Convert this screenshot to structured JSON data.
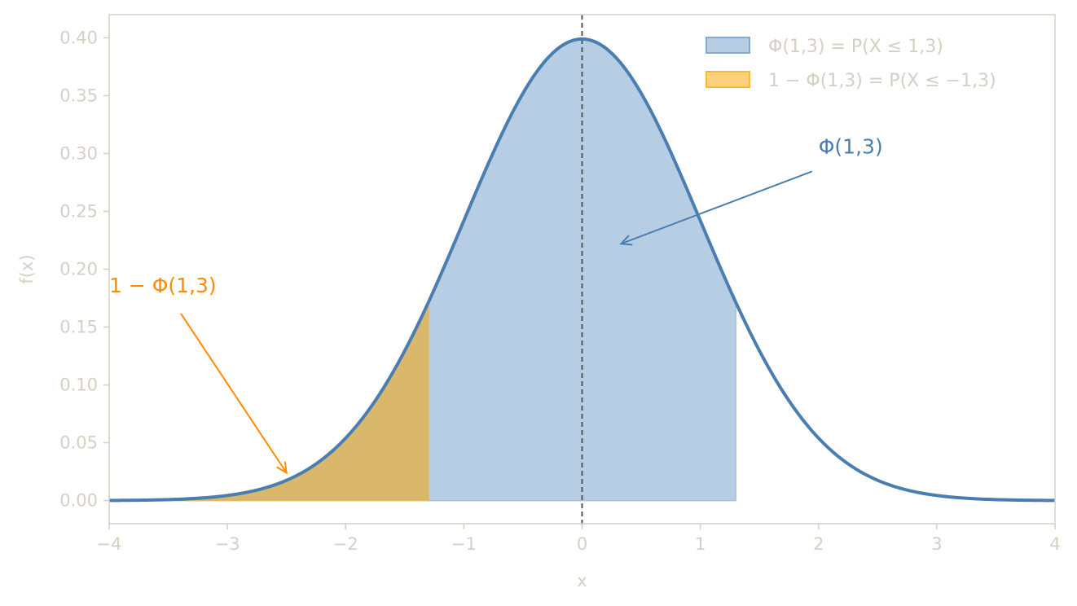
{
  "chart_data": {
    "type": "area",
    "title": "",
    "xlabel": "x",
    "ylabel": "f(x)",
    "xlim": [
      -4,
      4
    ],
    "ylim": [
      -0.02,
      0.42
    ],
    "xticks": [
      -4,
      -3,
      -2,
      -1,
      0,
      1,
      2,
      3,
      4
    ],
    "xtick_labels": [
      "−4",
      "−3",
      "−2",
      "−1",
      "0",
      "1",
      "2",
      "3",
      "4"
    ],
    "yticks": [
      0.0,
      0.05,
      0.1,
      0.15,
      0.2,
      0.25,
      0.3,
      0.35,
      0.4
    ],
    "ytick_labels": [
      "0.00",
      "0.05",
      "0.10",
      "0.15",
      "0.20",
      "0.25",
      "0.30",
      "0.35",
      "0.40"
    ],
    "grid": false,
    "legend_placement": "top-right",
    "curve": {
      "distribution": "standard normal pdf",
      "mean": 0,
      "sd": 1,
      "color": "#4a7eb0"
    },
    "shaded_regions": [
      {
        "legend": "Φ(1,3) = P(X ≤ 1,3)",
        "x_from": -1.3,
        "x_to": 1.3,
        "color": "#a5c1dc"
      },
      {
        "legend": "1 − Φ(1,3) = P(X ≤ −1,3)",
        "x_from": -4,
        "x_to": -1.3,
        "color": "#ffc966"
      }
    ],
    "reference_line": {
      "x": 0,
      "style": "dashed",
      "color": "#555555"
    },
    "annotations": [
      {
        "text": "Φ(1,3)",
        "color": "#4a7eb0",
        "text_at": [
          2.0,
          0.3
        ],
        "arrow_to": [
          0.33,
          0.222
        ]
      },
      {
        "text": "1 − Φ(1,3)",
        "color": "#ff8c00",
        "text_at": [
          -4.0,
          0.18
        ],
        "arrow_to": [
          -2.5,
          0.024
        ]
      }
    ]
  }
}
